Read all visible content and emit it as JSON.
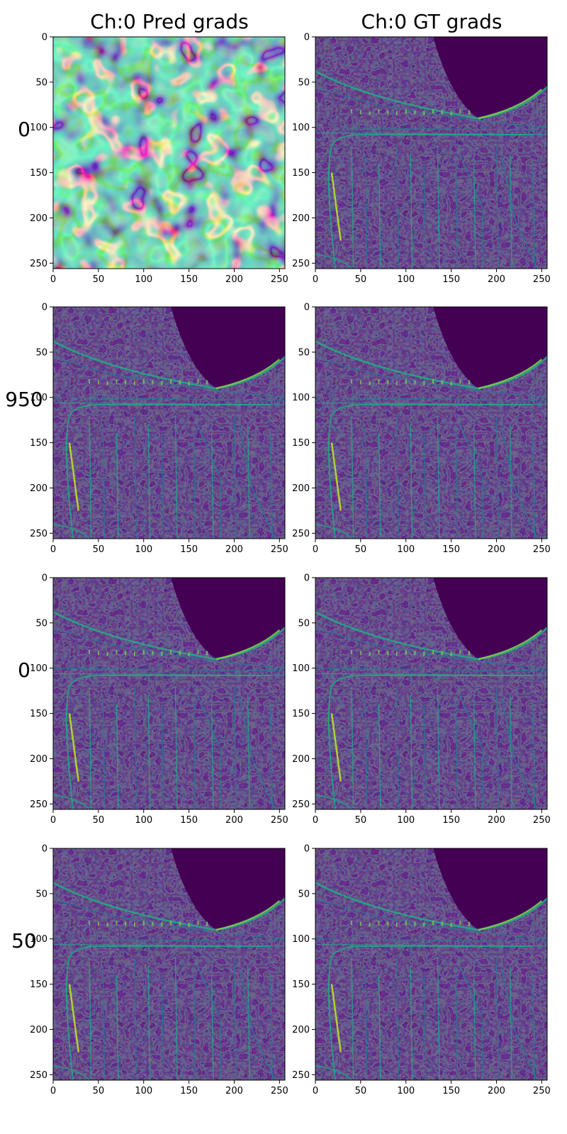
{
  "figure": {
    "column_titles": [
      "Ch:0 Pred grads",
      "Ch:0 GT grads"
    ],
    "row_labels": [
      "0",
      "950",
      "0",
      "50"
    ]
  },
  "chart_data": {
    "type": "heatmap",
    "colormap": "viridis",
    "colors": {
      "low": "#440154",
      "mid": "#21918c",
      "high": "#fde725"
    },
    "grid": false,
    "x_range": [
      0,
      256
    ],
    "y_range": [
      256,
      0
    ],
    "xticks": [
      0,
      50,
      100,
      150,
      200,
      250
    ],
    "yticks": [
      0,
      50,
      100,
      150,
      200,
      250
    ],
    "xtick_labels": [
      "0",
      "50",
      "100",
      "150",
      "200",
      "250"
    ],
    "ytick_labels": [
      "0",
      "50",
      "100",
      "150",
      "200",
      "250"
    ],
    "panels": [
      {
        "row": 0,
        "col": 0,
        "content": "noise"
      },
      {
        "row": 0,
        "col": 1,
        "content": "edges"
      },
      {
        "row": 1,
        "col": 0,
        "content": "edges"
      },
      {
        "row": 1,
        "col": 1,
        "content": "edges"
      },
      {
        "row": 2,
        "col": 0,
        "content": "edges"
      },
      {
        "row": 2,
        "col": 1,
        "content": "edges"
      },
      {
        "row": 3,
        "col": 0,
        "content": "edges"
      },
      {
        "row": 3,
        "col": 1,
        "content": "edges"
      }
    ]
  }
}
